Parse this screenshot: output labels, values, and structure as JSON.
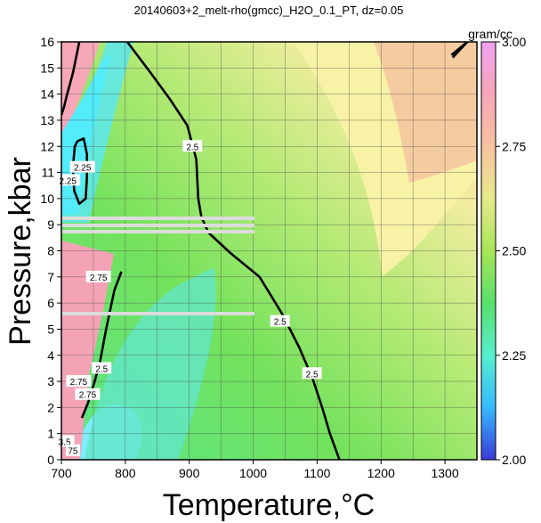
{
  "chart_data": {
    "type": "contour",
    "title": "20140603+2_melt-rho(gmcc)_H2O_0.1_PT, dz=0.05",
    "xlabel": "Temperature,°C",
    "ylabel": "Pressure,kbar",
    "xlim": [
      700,
      1350
    ],
    "ylim": [
      0,
      16
    ],
    "x_ticks": [
      700,
      800,
      900,
      1000,
      1100,
      1200,
      1300
    ],
    "y_ticks": [
      0,
      1,
      2,
      3,
      4,
      5,
      6,
      7,
      8,
      9,
      10,
      11,
      12,
      13,
      14,
      15,
      16
    ],
    "grid": true,
    "contour_interval": 0.05,
    "colorbar": {
      "label": "gram/cc",
      "range": [
        2.0,
        3.0
      ],
      "ticks": [
        "2.00",
        "2.25",
        "2.50",
        "2.75",
        "3.00"
      ],
      "colors": [
        "#3b3bd9",
        "#36b9ff",
        "#56f0cf",
        "#58e06c",
        "#a8e656",
        "#e6ea8c",
        "#f7c2a0",
        "#f9a6b8",
        "#f0a2f0"
      ]
    },
    "contour_labels": [
      {
        "text": "2.5",
        "x": 905,
        "y": 12.0
      },
      {
        "text": "2.5",
        "x": 1042,
        "y": 5.3
      },
      {
        "text": "2.5",
        "x": 1092,
        "y": 3.3
      },
      {
        "text": "2.5",
        "x": 763,
        "y": 3.5
      },
      {
        "text": "2.25",
        "x": 733,
        "y": 11.2
      },
      {
        "text": "2.25",
        "x": 710,
        "y": 10.7
      },
      {
        "text": "2.75",
        "x": 758,
        "y": 7.0
      },
      {
        "text": "2.75",
        "x": 727,
        "y": 3.0
      },
      {
        "text": "2.75",
        "x": 741,
        "y": 2.5
      },
      {
        "text": "3.5",
        "x": 705,
        "y": 0.7
      },
      {
        "text": "75",
        "x": 718,
        "y": 0.35
      }
    ],
    "series": [
      {
        "level": 2.5,
        "weight": "bold",
        "points": [
          [
            803,
            16
          ],
          [
            840,
            14.8
          ],
          [
            870,
            13.8
          ],
          [
            897,
            12.8
          ],
          [
            911,
            11.5
          ],
          [
            914,
            10
          ],
          [
            919,
            9.3
          ],
          [
            930,
            8.7
          ],
          [
            965,
            7.9
          ],
          [
            1010,
            7.0
          ],
          [
            1045,
            5.6
          ],
          [
            1072,
            4.3
          ],
          [
            1093,
            3.1
          ],
          [
            1108,
            2.0
          ],
          [
            1120,
            1.0
          ],
          [
            1135,
            0
          ]
        ]
      },
      {
        "level": 2.5,
        "weight": "bold",
        "points": [
          [
            728,
            16
          ],
          [
            718,
            14.8
          ],
          [
            709,
            14.0
          ],
          [
            704,
            13.5
          ],
          [
            700,
            13.2
          ]
        ]
      },
      {
        "level": 2.5,
        "weight": "bold",
        "points": [
          [
            794,
            7.2
          ],
          [
            783,
            6.5
          ],
          [
            770,
            5.0
          ],
          [
            760,
            3.7
          ],
          [
            752,
            3.0
          ],
          [
            742,
            2.2
          ],
          [
            732,
            1.6
          ]
        ]
      },
      {
        "level": 2.25,
        "weight": "bold",
        "points": [
          [
            725,
            12.2
          ],
          [
            735,
            12.3
          ],
          [
            740,
            11.7
          ],
          [
            740,
            10.8
          ],
          [
            738,
            10.0
          ],
          [
            728,
            9.8
          ],
          [
            720,
            10.3
          ],
          [
            718,
            11.2
          ],
          [
            721,
            12.0
          ],
          [
            725,
            12.2
          ]
        ]
      },
      {
        "level": 2.6,
        "weight": "bold",
        "points": [
          [
            1310,
            15.5
          ],
          [
            1335,
            16
          ],
          [
            1312,
            15.4
          ]
        ]
      }
    ]
  }
}
